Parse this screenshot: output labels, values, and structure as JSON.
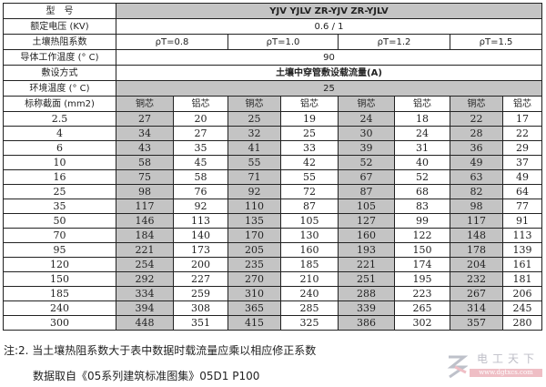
{
  "header": {
    "model_label": "型　号",
    "model_value": "YJV  YJLV  ZR-YJV  ZR-YJLV",
    "voltage_label": "额定电压 (KV)",
    "voltage_value": "0.6 / 1",
    "resistivity_label": "土壤热阻系数",
    "resistivity": [
      "ρT=0.8",
      "ρT=1.0",
      "ρT=1.2",
      "ρT=1.5"
    ],
    "conductor_temp_label": "导体工作温度 (° C)",
    "conductor_temp_value": "90",
    "laying_label": "敷设方式",
    "laying_value": "土壤中穿管敷设载流量(A)",
    "ambient_label": "环境温度 (° C)",
    "ambient_value": "25",
    "section_label": "标称截面 (mm2)",
    "copper": "铜芯",
    "aluminum": "铝芯"
  },
  "rows": [
    [
      "2.5",
      "27",
      "20",
      "25",
      "19",
      "24",
      "18",
      "22",
      "17"
    ],
    [
      "4",
      "34",
      "27",
      "32",
      "25",
      "30",
      "24",
      "28",
      "22"
    ],
    [
      "6",
      "43",
      "35",
      "41",
      "33",
      "39",
      "31",
      "36",
      "29"
    ],
    [
      "10",
      "58",
      "45",
      "55",
      "42",
      "52",
      "40",
      "49",
      "37"
    ],
    [
      "16",
      "75",
      "58",
      "71",
      "55",
      "67",
      "52",
      "63",
      "49"
    ],
    [
      "25",
      "98",
      "76",
      "92",
      "72",
      "87",
      "68",
      "82",
      "64"
    ],
    [
      "35",
      "117",
      "92",
      "110",
      "87",
      "105",
      "83",
      "98",
      "77"
    ],
    [
      "50",
      "146",
      "113",
      "135",
      "105",
      "127",
      "99",
      "117",
      "91"
    ],
    [
      "70",
      "184",
      "140",
      "170",
      "130",
      "160",
      "122",
      "148",
      "113"
    ],
    [
      "95",
      "221",
      "173",
      "205",
      "160",
      "193",
      "150",
      "178",
      "139"
    ],
    [
      "120",
      "254",
      "200",
      "235",
      "185",
      "221",
      "174",
      "204",
      "161"
    ],
    [
      "150",
      "292",
      "227",
      "270",
      "210",
      "251",
      "195",
      "232",
      "181"
    ],
    [
      "185",
      "334",
      "259",
      "310",
      "240",
      "288",
      "223",
      "267",
      "206"
    ],
    [
      "240",
      "394",
      "308",
      "365",
      "285",
      "339",
      "265",
      "314",
      "245"
    ],
    [
      "300",
      "448",
      "351",
      "415",
      "325",
      "386",
      "302",
      "357",
      "280"
    ]
  ],
  "notes": {
    "note1": "注:2. 当土壤热阻系数大于表中数据时载流量应乘以相应修正系数",
    "note2": "数据取自《05系列建筑标准图集》05D1 P100"
  },
  "watermark": {
    "title": "电工天下",
    "url": "www.dgtxcs.com"
  },
  "colors": {
    "shade": "#c4c4c4"
  }
}
